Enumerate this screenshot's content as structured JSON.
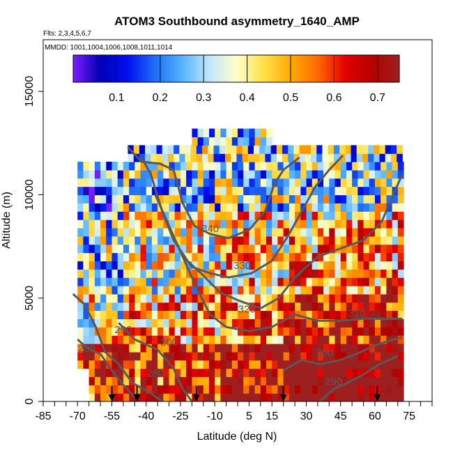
{
  "chart_data": {
    "type": "heatmap",
    "title": "ATOM3 Southbound asymmetry_1640_AMP",
    "subtitle_flights": "Flts: 2,3,4,5,6,7",
    "subtitle_dates": "MMDD: 1001,1004,1006,1008,1011,1014",
    "xlabel": "Latitude (deg N)",
    "ylabel": "Altitude (m)",
    "xlim": [
      -85,
      85
    ],
    "ylim": [
      0,
      17500
    ],
    "x_tick_labels": [
      "-85",
      "-70",
      "-55",
      "-40",
      "-25",
      "-10",
      "5",
      "15",
      "30",
      "45",
      "60",
      "75"
    ],
    "x_tick_values": [
      -85,
      -70,
      -55,
      -40,
      -25,
      -10,
      5,
      15,
      30,
      45,
      60,
      75
    ],
    "x_minor_ticks": [
      -80,
      -75,
      -65,
      -60,
      -50,
      -45,
      -35,
      -30,
      -20,
      -15,
      -5,
      0,
      10,
      20,
      25,
      35,
      40,
      50,
      55,
      65,
      70,
      80,
      85
    ],
    "y_tick_labels": [
      "0",
      "5000",
      "10000",
      "15000"
    ],
    "y_tick_values": [
      0,
      5000,
      10000,
      15000
    ],
    "colorbar": {
      "range": [
        0,
        0.75
      ],
      "tick_labels": [
        "0.1",
        "0.2",
        "0.3",
        "0.4",
        "0.5",
        "0.6",
        "0.7"
      ],
      "tick_values": [
        0.1,
        0.2,
        0.3,
        0.4,
        0.5,
        0.6,
        0.7
      ],
      "colors": [
        "#7d1dff",
        "#0000b4",
        "#0010ee",
        "#1f6df5",
        "#55b4ff",
        "#bfe6ff",
        "#ffffc8",
        "#ffe14a",
        "#ffaa00",
        "#ff6a00",
        "#e40000",
        "#b40000",
        "#9c2020"
      ]
    },
    "columns": [
      {
        "lat": -68,
        "tops": [
          12300
        ]
      },
      {
        "lat": -55,
        "tops": [
          12300
        ]
      },
      {
        "lat": -45,
        "tops": [
          12300
        ]
      },
      {
        "lat": -20,
        "tops": [
          13000
        ]
      },
      {
        "lat": 15,
        "tops": [
          13000
        ]
      },
      {
        "lat": 50,
        "tops": [
          12300
        ]
      },
      {
        "lat": 70,
        "tops": [
          12300
        ]
      }
    ],
    "domain": {
      "lat_min": -70,
      "lat_max": 72,
      "alt_max": 13000
    },
    "flight_markers_lat": [
      -55,
      -44,
      -18,
      20,
      61
    ],
    "grid": false,
    "legend": "colorbar top",
    "contours": {
      "type": "potential temperature",
      "labels": [
        "280",
        "280",
        "290",
        "290",
        "300",
        "300",
        "310",
        "320",
        "330",
        "340"
      ],
      "lines": [
        {
          "label": "280",
          "points": [
            [
              -70,
              3000
            ],
            [
              -66,
              2600
            ],
            [
              -60,
              2300
            ],
            [
              -55,
              1500
            ],
            [
              -50,
              800
            ],
            [
              -45,
              200
            ]
          ]
        },
        {
          "label": "290",
          "points": [
            [
              -72,
              5200
            ],
            [
              -67,
              4700
            ],
            [
              -62,
              3600
            ],
            [
              -58,
              2400
            ],
            [
              -52,
              1800
            ],
            [
              -46,
              900
            ],
            [
              -38,
              400
            ],
            [
              -33,
              0
            ]
          ]
        },
        {
          "label": "300",
          "points": [
            [
              -52,
              3800
            ],
            [
              -45,
              3000
            ],
            [
              -35,
              2500
            ],
            [
              -28,
              1600
            ],
            [
              -24,
              600
            ],
            [
              -20,
              0
            ]
          ]
        },
        {
          "label": "290b",
          "points": [
            [
              36,
              0
            ],
            [
              42,
              600
            ],
            [
              48,
              900
            ],
            [
              55,
              1300
            ],
            [
              62,
              1800
            ],
            [
              70,
              2200
            ]
          ]
        },
        {
          "label": "300b",
          "points": [
            [
              20,
              1500
            ],
            [
              28,
              2000
            ],
            [
              36,
              1800
            ],
            [
              45,
              2000
            ],
            [
              52,
              2300
            ],
            [
              60,
              2700
            ],
            [
              68,
              3000
            ],
            [
              72,
              3100
            ]
          ]
        },
        {
          "label": "310",
          "points": [
            [
              -24,
              7000
            ],
            [
              -18,
              5500
            ],
            [
              -12,
              4200
            ],
            [
              -5,
              3600
            ],
            [
              5,
              3400
            ],
            [
              15,
              3600
            ],
            [
              25,
              4200
            ],
            [
              35,
              3900
            ],
            [
              45,
              3900
            ],
            [
              55,
              4000
            ],
            [
              65,
              4000
            ],
            [
              72,
              4000
            ]
          ]
        },
        {
          "label": "320",
          "points": [
            [
              -36,
              10000
            ],
            [
              -30,
              8500
            ],
            [
              -24,
              7000
            ],
            [
              -16,
              6200
            ],
            [
              -8,
              5300
            ],
            [
              0,
              4900
            ],
            [
              10,
              4500
            ],
            [
              18,
              5000
            ],
            [
              25,
              6000
            ],
            [
              35,
              7000
            ],
            [
              45,
              7400
            ],
            [
              55,
              7800
            ],
            [
              63,
              8700
            ],
            [
              68,
              10000
            ],
            [
              72,
              11000
            ]
          ]
        },
        {
          "label": "330",
          "points": [
            [
              -42,
              11800
            ],
            [
              -38,
              11000
            ],
            [
              -33,
              9200
            ],
            [
              -28,
              7800
            ],
            [
              -20,
              6500
            ],
            [
              -12,
              6200
            ],
            [
              -4,
              6000
            ],
            [
              6,
              6200
            ],
            [
              15,
              6800
            ],
            [
              22,
              8000
            ],
            [
              28,
              9200
            ],
            [
              34,
              10400
            ],
            [
              40,
              11200
            ],
            [
              46,
              11900
            ]
          ]
        },
        {
          "label": "340",
          "points": [
            [
              -48,
              12300
            ],
            [
              -42,
              11600
            ],
            [
              -34,
              11500
            ],
            [
              -28,
              11200
            ],
            [
              -24,
              9600
            ],
            [
              -19,
              8500
            ],
            [
              -12,
              8100
            ],
            [
              -4,
              7900
            ],
            [
              5,
              8300
            ],
            [
              12,
              9200
            ],
            [
              16,
              10500
            ],
            [
              20,
              11200
            ],
            [
              27,
              11800
            ]
          ]
        }
      ]
    }
  }
}
